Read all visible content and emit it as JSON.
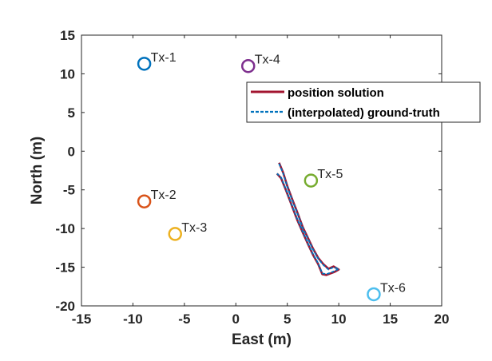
{
  "chart_data": {
    "type": "scatter",
    "title": "",
    "xlabel": "East (m)",
    "ylabel": "North (m)",
    "xlim": [
      -15,
      20
    ],
    "ylim": [
      -20,
      15
    ],
    "xticks": [
      -15,
      -10,
      -5,
      0,
      5,
      10,
      15,
      20
    ],
    "yticks": [
      -20,
      -15,
      -10,
      -5,
      0,
      5,
      10,
      15
    ],
    "xtick_labels": [
      "-15",
      "-10",
      "-5",
      "0",
      "5",
      "10",
      "15",
      "20"
    ],
    "ytick_labels": [
      "-20",
      "-15",
      "-10",
      "-5",
      "0",
      "5",
      "10",
      "15"
    ],
    "grid": false,
    "legend_placement": "top-right",
    "transmitters": [
      {
        "label": "Tx-1",
        "x": -8.9,
        "y": 11.3,
        "color": "#0072BD"
      },
      {
        "label": "Tx-2",
        "x": -8.9,
        "y": -6.5,
        "color": "#D95319"
      },
      {
        "label": "Tx-3",
        "x": -5.9,
        "y": -10.7,
        "color": "#EDB120"
      },
      {
        "label": "Tx-4",
        "x": 1.2,
        "y": 11.0,
        "color": "#7E2F8E"
      },
      {
        "label": "Tx-5",
        "x": 7.3,
        "y": -3.8,
        "color": "#77AC30"
      },
      {
        "label": "Tx-6",
        "x": 13.4,
        "y": -18.5,
        "color": "#4DBEEE"
      }
    ],
    "series": [
      {
        "name": "position solution",
        "color": "#A2142F",
        "style": "solid",
        "x": [
          4.2,
          4.6,
          5.0,
          5.5,
          6.0,
          6.5,
          7.0,
          7.5,
          8.0,
          8.5,
          9.0,
          9.5,
          10.0,
          9.6,
          8.8,
          8.4,
          8.0,
          7.5,
          7.0,
          6.5,
          6.0,
          5.6,
          5.2,
          4.8,
          4.4,
          4.0
        ],
        "y": [
          -1.5,
          -2.8,
          -4.5,
          -6.3,
          -8.0,
          -9.8,
          -11.2,
          -12.6,
          -13.8,
          -14.6,
          -15.2,
          -14.9,
          -15.3,
          -15.6,
          -16.0,
          -15.9,
          -14.6,
          -13.4,
          -12.0,
          -10.5,
          -9.0,
          -7.6,
          -6.2,
          -4.8,
          -3.5,
          -2.9
        ]
      },
      {
        "name": "(interpolated) ground-truth",
        "color": "#0072BD",
        "style": "dashed",
        "x": [
          4.2,
          4.6,
          5.0,
          5.5,
          6.0,
          6.5,
          7.0,
          7.5,
          8.0,
          8.5,
          9.0,
          9.5,
          10.0,
          9.6,
          8.8,
          8.4,
          8.0,
          7.5,
          7.0,
          6.5,
          6.0,
          5.6,
          5.2,
          4.8,
          4.4,
          4.0
        ],
        "y": [
          -1.6,
          -2.9,
          -4.6,
          -6.4,
          -8.1,
          -9.9,
          -11.3,
          -12.7,
          -13.9,
          -14.7,
          -15.3,
          -15.0,
          -15.2,
          -15.5,
          -15.9,
          -15.8,
          -14.5,
          -13.3,
          -11.9,
          -10.4,
          -8.9,
          -7.5,
          -6.1,
          -4.7,
          -3.4,
          -2.9
        ]
      }
    ]
  }
}
